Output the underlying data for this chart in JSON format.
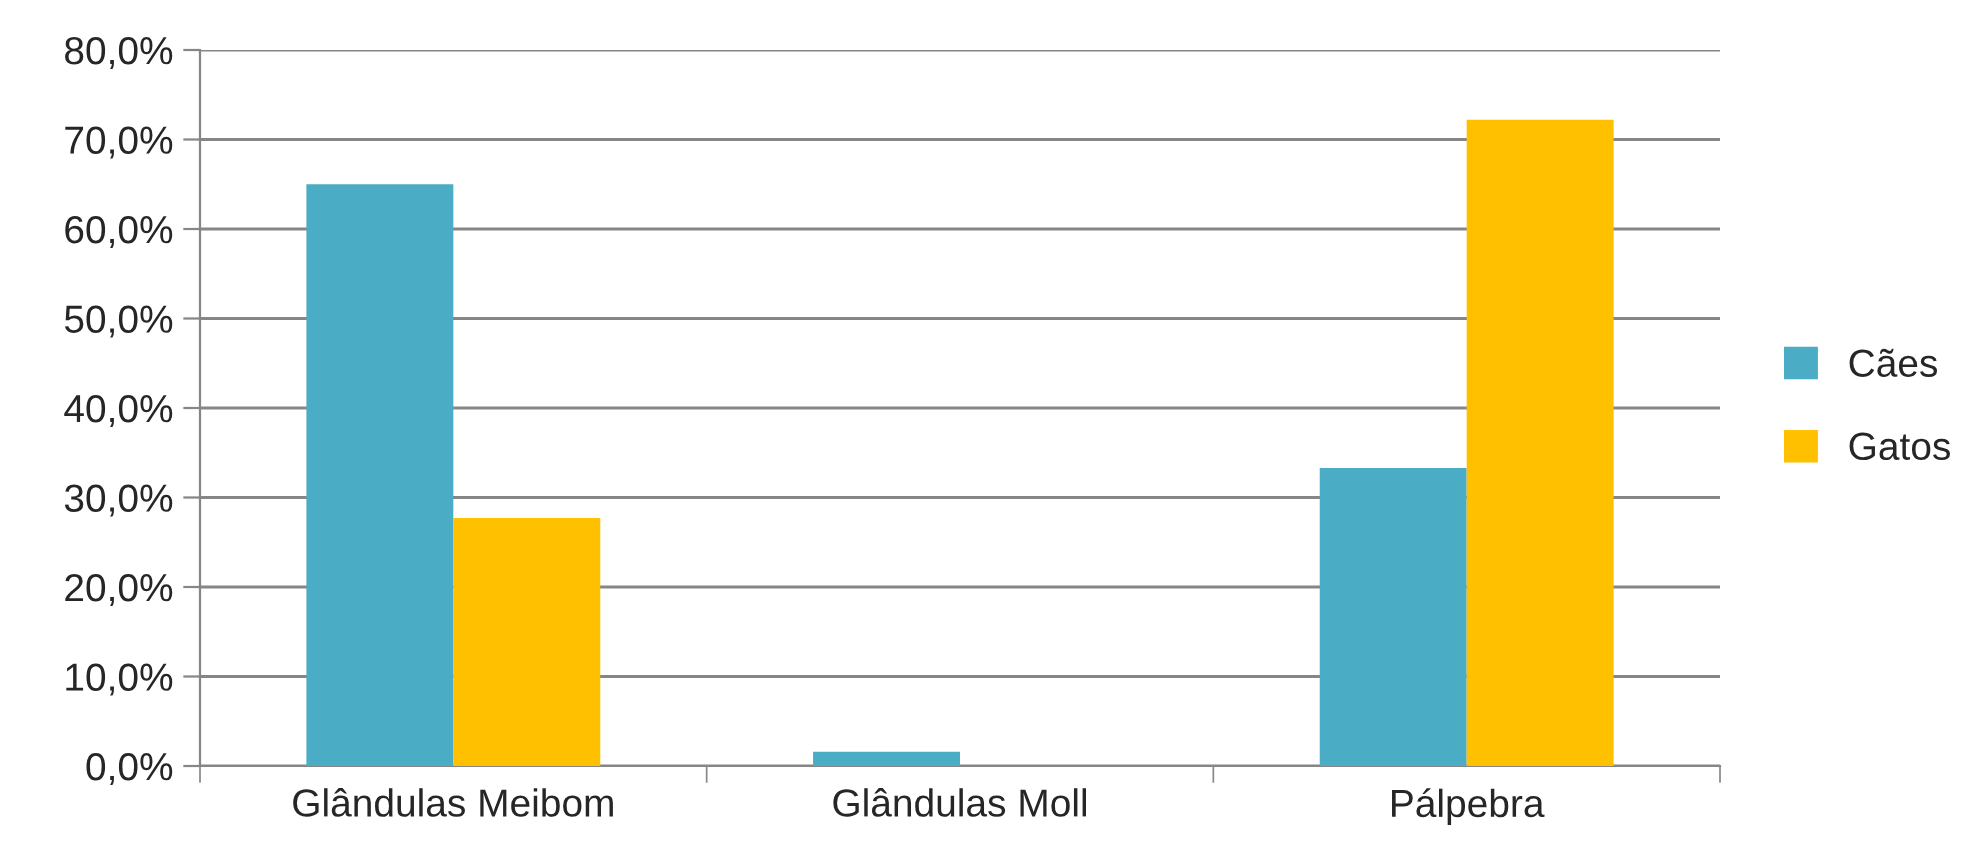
{
  "chart_data": {
    "type": "bar",
    "categories": [
      "Glândulas Meibom",
      "Glândulas Moll",
      "Pálpebra"
    ],
    "series": [
      {
        "name": "Cães",
        "color": "#4bacc6",
        "values": [
          65.0,
          1.6,
          33.3
        ]
      },
      {
        "name": "Gatos",
        "color": "#ffc000",
        "values": [
          27.7,
          null,
          72.2
        ]
      }
    ],
    "ylim": [
      0,
      80
    ],
    "yticks": [
      {
        "value": 0,
        "label": "0,0%"
      },
      {
        "value": 10,
        "label": "10,0%"
      },
      {
        "value": 20,
        "label": "20,0%"
      },
      {
        "value": 30,
        "label": "30,0%"
      },
      {
        "value": 40,
        "label": "40,0%"
      },
      {
        "value": 50,
        "label": "50,0%"
      },
      {
        "value": 60,
        "label": "60,0%"
      },
      {
        "value": 70,
        "label": "70,0%"
      },
      {
        "value": 80,
        "label": "80,0%"
      }
    ],
    "grid": "y",
    "legend": "right"
  }
}
